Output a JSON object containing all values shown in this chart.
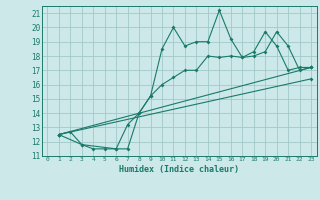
{
  "title": "",
  "xlabel": "Humidex (Indice chaleur)",
  "bg_color": "#cce8e8",
  "grid_color": "#a0c8c8",
  "line_color": "#1a7a6a",
  "xlim": [
    -0.5,
    23.5
  ],
  "ylim": [
    11,
    21.5
  ],
  "xticks": [
    0,
    1,
    2,
    3,
    4,
    5,
    6,
    7,
    8,
    9,
    10,
    11,
    12,
    13,
    14,
    15,
    16,
    17,
    18,
    19,
    20,
    21,
    22,
    23
  ],
  "yticks": [
    11,
    12,
    13,
    14,
    15,
    16,
    17,
    18,
    19,
    20,
    21
  ],
  "line1_x": [
    1,
    2,
    3,
    4,
    5,
    6,
    7,
    8,
    9,
    10,
    11,
    12,
    13,
    14,
    15,
    16,
    17,
    18,
    19,
    20,
    21,
    22,
    23
  ],
  "line1_y": [
    12.5,
    12.7,
    11.8,
    11.5,
    11.5,
    11.5,
    11.5,
    14.0,
    15.2,
    18.5,
    20.0,
    18.7,
    19.0,
    19.0,
    21.2,
    19.2,
    17.9,
    18.0,
    18.3,
    19.7,
    18.7,
    17.0,
    17.2
  ],
  "line2_x": [
    1,
    3,
    6,
    7,
    8,
    9,
    10,
    11,
    12,
    13,
    14,
    15,
    16,
    17,
    18,
    19,
    20,
    21,
    22,
    23
  ],
  "line2_y": [
    12.5,
    11.8,
    11.5,
    13.2,
    14.0,
    15.2,
    16.0,
    16.5,
    17.0,
    17.0,
    18.0,
    17.9,
    18.0,
    17.9,
    18.3,
    19.7,
    18.7,
    17.0,
    17.2,
    17.2
  ],
  "line3_x": [
    1,
    23
  ],
  "line3_y": [
    12.5,
    17.2
  ],
  "line4_x": [
    1,
    23
  ],
  "line4_y": [
    12.5,
    16.4
  ]
}
